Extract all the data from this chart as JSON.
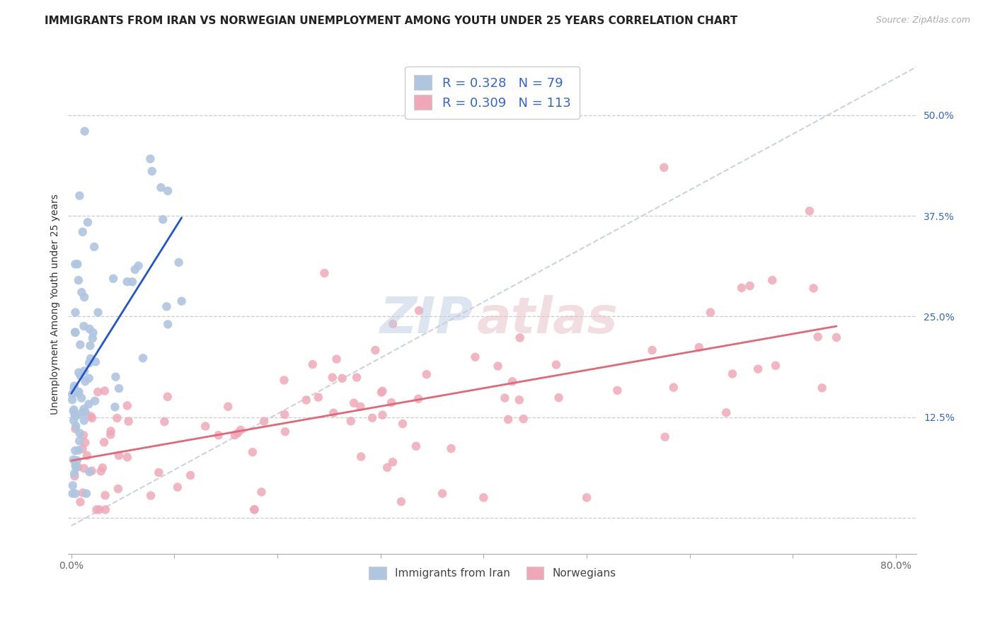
{
  "title": "IMMIGRANTS FROM IRAN VS NORWEGIAN UNEMPLOYMENT AMONG YOUTH UNDER 25 YEARS CORRELATION CHART",
  "source": "Source: ZipAtlas.com",
  "ylabel": "Unemployment Among Youth under 25 years",
  "xlim": [
    -0.003,
    0.82
  ],
  "ylim": [
    -0.045,
    0.575
  ],
  "xtick_positions": [
    0.0,
    0.1,
    0.2,
    0.3,
    0.4,
    0.5,
    0.6,
    0.7,
    0.8
  ],
  "xticklabels": [
    "0.0%",
    "",
    "",
    "",
    "",
    "",
    "",
    "",
    "80.0%"
  ],
  "ytick_positions": [
    0.0,
    0.125,
    0.25,
    0.375,
    0.5
  ],
  "ytick_labels": [
    "",
    "12.5%",
    "25.0%",
    "37.5%",
    "50.0%"
  ],
  "legend_blue_r": "0.328",
  "legend_blue_n": "79",
  "legend_pink_r": "0.309",
  "legend_pink_n": "113",
  "legend_label_blue": "Immigrants from Iran",
  "legend_label_pink": "Norwegians",
  "color_blue_scatter": "#aec6e0",
  "color_pink_scatter": "#f0a8b8",
  "color_trendline_blue": "#2255cc",
  "color_trendline_pink": "#e06878",
  "color_dashed": "#c0c8d4",
  "color_legend_text": "#3366cc",
  "color_yaxis_right": "#3366cc",
  "title_color": "#222222",
  "source_color": "#aaaaaa",
  "title_fontsize": 11,
  "source_fontsize": 9,
  "legend_fontsize": 13,
  "ylabel_fontsize": 10,
  "tick_fontsize": 10
}
